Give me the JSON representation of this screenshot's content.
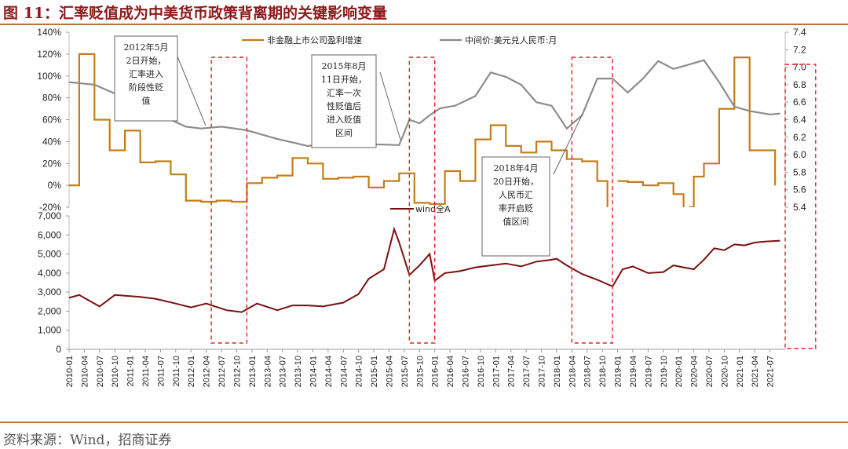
{
  "title": "图 11：汇率贬值成为中美货币政策背离期的关键影响变量",
  "source": "资料来源：Wind，招商证券",
  "colors": {
    "earnings": "#c47d17",
    "fx": "#8c8c8c",
    "index": "#7a1010",
    "highlight": "#e02020",
    "title": "#8b1a1a"
  },
  "chart_data": [
    {
      "type": "line",
      "panel": "top",
      "left_axis": {
        "ticks": [
          "-20%",
          "0%",
          "20%",
          "40%",
          "60%",
          "80%",
          "100%",
          "120%",
          "140%"
        ],
        "range": [
          -20,
          140
        ]
      },
      "right_axis": {
        "ticks": [
          "5.4",
          "5.6",
          "5.8",
          "6.0",
          "6.2",
          "6.4",
          "6.6",
          "6.8",
          "7.0",
          "7.2",
          "7.4"
        ],
        "range": [
          5.4,
          7.4
        ]
      },
      "series": [
        {
          "name": "非金融上市公司盈利增速",
          "axis": "left",
          "style": "step",
          "points": [
            [
              "2010-01",
              0
            ],
            [
              "2010-03",
              120
            ],
            [
              "2010-06",
              60
            ],
            [
              "2010-09",
              32
            ],
            [
              "2010-12",
              50
            ],
            [
              "2011-03",
              21
            ],
            [
              "2011-06",
              22
            ],
            [
              "2011-09",
              10
            ],
            [
              "2011-12",
              -14
            ],
            [
              "2012-03",
              -15
            ],
            [
              "2012-06",
              -14
            ],
            [
              "2012-09",
              -15
            ],
            [
              "2012-12",
              2
            ],
            [
              "2013-03",
              7
            ],
            [
              "2013-06",
              9
            ],
            [
              "2013-09",
              25
            ],
            [
              "2013-12",
              20
            ],
            [
              "2014-03",
              6
            ],
            [
              "2014-06",
              7
            ],
            [
              "2014-09",
              8
            ],
            [
              "2014-12",
              -2
            ],
            [
              "2015-03",
              4
            ],
            [
              "2015-06",
              11
            ],
            [
              "2015-09",
              -16
            ],
            [
              "2015-12",
              -17
            ],
            [
              "2016-03",
              13
            ],
            [
              "2016-06",
              4
            ],
            [
              "2016-09",
              42
            ],
            [
              "2016-12",
              55
            ],
            [
              "2017-03",
              36
            ],
            [
              "2017-06",
              30
            ],
            [
              "2017-09",
              40
            ],
            [
              "2017-12",
              32
            ],
            [
              "2018-03",
              24
            ],
            [
              "2018-06",
              22
            ],
            [
              "2018-09",
              4
            ],
            [
              "2018-11",
              -22
            ]
          ]
        },
        {
          "name": "",
          "axis": "left",
          "style": "step",
          "points": [
            [
              "2019-01",
              4
            ],
            [
              "2019-03",
              3
            ],
            [
              "2019-06",
              0
            ],
            [
              "2019-09",
              2
            ],
            [
              "2019-12",
              -8
            ],
            [
              "2020-02",
              -22
            ]
          ]
        },
        {
          "name": "",
          "axis": "left",
          "style": "step",
          "points": [
            [
              "2020-03",
              -20
            ],
            [
              "2020-04",
              8
            ],
            [
              "2020-06",
              20
            ],
            [
              "2020-09",
              70
            ],
            [
              "2020-12",
              117
            ],
            [
              "2021-03",
              32
            ],
            [
              "2021-06",
              32
            ],
            [
              "2021-08",
              0
            ]
          ]
        },
        {
          "name": "中间价:美元兑人民币:月",
          "axis": "right",
          "style": "line",
          "points": [
            [
              "2010-01",
              6.83
            ],
            [
              "2010-06",
              6.8
            ],
            [
              "2010-12",
              6.65
            ],
            [
              "2011-06",
              6.48
            ],
            [
              "2011-12",
              6.32
            ],
            [
              "2012-03",
              6.3
            ],
            [
              "2012-07",
              6.32
            ],
            [
              "2012-12",
              6.28
            ],
            [
              "2013-06",
              6.18
            ],
            [
              "2013-12",
              6.1
            ],
            [
              "2014-03",
              6.12
            ],
            [
              "2014-06",
              6.15
            ],
            [
              "2014-12",
              6.12
            ],
            [
              "2015-06",
              6.11
            ],
            [
              "2015-08",
              6.4
            ],
            [
              "2015-10",
              6.36
            ],
            [
              "2015-12",
              6.45
            ],
            [
              "2016-02",
              6.53
            ],
            [
              "2016-05",
              6.56
            ],
            [
              "2016-09",
              6.67
            ],
            [
              "2016-12",
              6.94
            ],
            [
              "2017-03",
              6.89
            ],
            [
              "2017-06",
              6.8
            ],
            [
              "2017-09",
              6.6
            ],
            [
              "2017-12",
              6.56
            ],
            [
              "2018-03",
              6.3
            ],
            [
              "2018-06",
              6.45
            ],
            [
              "2018-09",
              6.87
            ],
            [
              "2018-12",
              6.87
            ],
            [
              "2019-03",
              6.71
            ],
            [
              "2019-06",
              6.87
            ],
            [
              "2019-09",
              7.07
            ],
            [
              "2019-12",
              6.98
            ],
            [
              "2020-03",
              7.03
            ],
            [
              "2020-06",
              7.08
            ],
            [
              "2020-09",
              6.83
            ],
            [
              "2020-12",
              6.55
            ],
            [
              "2021-03",
              6.5
            ],
            [
              "2021-07",
              6.46
            ],
            [
              "2021-09",
              6.47
            ]
          ]
        }
      ]
    },
    {
      "type": "line",
      "panel": "bottom",
      "axis": {
        "ticks": [
          "0",
          "1,000",
          "2,000",
          "3,000",
          "4,000",
          "5,000",
          "6,000",
          "7,000"
        ],
        "range": [
          0,
          7000
        ]
      },
      "series": [
        {
          "name": "wind全A",
          "points": [
            [
              "2010-01",
              2700
            ],
            [
              "2010-03",
              2850
            ],
            [
              "2010-07",
              2250
            ],
            [
              "2010-10",
              2850
            ],
            [
              "2011-03",
              2750
            ],
            [
              "2011-06",
              2650
            ],
            [
              "2011-10",
              2400
            ],
            [
              "2012-01",
              2200
            ],
            [
              "2012-04",
              2400
            ],
            [
              "2012-08",
              2050
            ],
            [
              "2012-11",
              1950
            ],
            [
              "2013-02",
              2400
            ],
            [
              "2013-06",
              2050
            ],
            [
              "2013-09",
              2300
            ],
            [
              "2013-12",
              2300
            ],
            [
              "2014-03",
              2250
            ],
            [
              "2014-07",
              2450
            ],
            [
              "2014-10",
              2900
            ],
            [
              "2014-12",
              3700
            ],
            [
              "2015-03",
              4200
            ],
            [
              "2015-05",
              6300
            ],
            [
              "2015-06",
              5600
            ],
            [
              "2015-08",
              3900
            ],
            [
              "2015-10",
              4400
            ],
            [
              "2015-12",
              5000
            ],
            [
              "2016-01",
              3600
            ],
            [
              "2016-03",
              4000
            ],
            [
              "2016-06",
              4100
            ],
            [
              "2016-09",
              4300
            ],
            [
              "2016-12",
              4400
            ],
            [
              "2017-03",
              4500
            ],
            [
              "2017-06",
              4350
            ],
            [
              "2017-09",
              4600
            ],
            [
              "2017-12",
              4700
            ],
            [
              "2018-01",
              4750
            ],
            [
              "2018-03",
              4400
            ],
            [
              "2018-06",
              3950
            ],
            [
              "2018-09",
              3650
            ],
            [
              "2018-12",
              3300
            ],
            [
              "2019-02",
              4200
            ],
            [
              "2019-04",
              4350
            ],
            [
              "2019-07",
              4000
            ],
            [
              "2019-10",
              4050
            ],
            [
              "2019-12",
              4400
            ],
            [
              "2020-02",
              4300
            ],
            [
              "2020-04",
              4200
            ],
            [
              "2020-06",
              4700
            ],
            [
              "2020-08",
              5300
            ],
            [
              "2020-10",
              5200
            ],
            [
              "2020-12",
              5500
            ],
            [
              "2021-02",
              5450
            ],
            [
              "2021-04",
              5600
            ],
            [
              "2021-06",
              5650
            ],
            [
              "2021-09",
              5700
            ]
          ]
        }
      ]
    },
    {
      "type": "x-axis",
      "labels": [
        "2010-01",
        "2010-04",
        "2010-07",
        "2010-10",
        "2011-01",
        "2011-04",
        "2011-07",
        "2011-10",
        "2012-01",
        "2012-04",
        "2012-07",
        "2012-10",
        "2013-01",
        "2013-04",
        "2013-07",
        "2013-10",
        "2014-01",
        "2014-04",
        "2014-07",
        "2014-10",
        "2015-01",
        "2015-04",
        "2015-07",
        "2015-10",
        "2016-01",
        "2016-04",
        "2016-07",
        "2016-10",
        "2017-01",
        "2017-04",
        "2017-07",
        "2017-10",
        "2018-01",
        "2018-04",
        "2018-07",
        "2018-10",
        "2019-01",
        "2019-04",
        "2019-07",
        "2019-10",
        "2020-01",
        "2020-04",
        "2020-07",
        "2020-10",
        "2021-01",
        "2021-04",
        "2021-07"
      ]
    }
  ],
  "highlight_periods": [
    {
      "start": "2012-05",
      "end": "2012-12"
    },
    {
      "start": "2015-08",
      "end": "2016-01"
    },
    {
      "start": "2018-04",
      "end": "2018-12"
    },
    {
      "start": "2021-10",
      "end": "2022-04"
    }
  ],
  "annotations": [
    {
      "lines": [
        "2012年5月",
        "2日开始，",
        "汇率进入",
        "阶段性贬",
        "值"
      ]
    },
    {
      "lines": [
        "2015年8月",
        "11日开始，",
        "汇率一次",
        "性贬值后",
        "进入贬值",
        "区间"
      ]
    },
    {
      "lines": [
        "2018年4月",
        "20日开始，",
        "人民币汇",
        "率开启贬",
        "值区间"
      ]
    }
  ]
}
